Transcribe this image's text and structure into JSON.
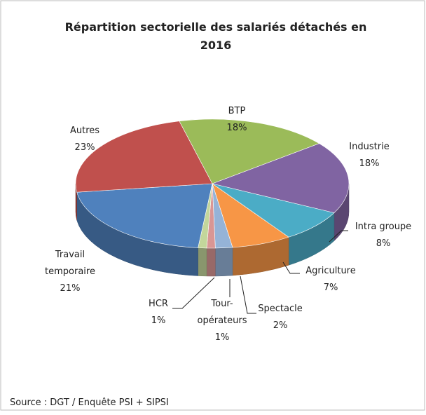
{
  "chart_data": {
    "type": "pie3d",
    "title": "Répartition sectorielle des salariés détachés en 2016",
    "categories": [
      "BTP",
      "Industrie",
      "Intra groupe",
      "Agriculture",
      "Spectacle",
      "Tour-opérateurs",
      "HCR",
      "Travail temporaire",
      "Autres"
    ],
    "values": [
      18,
      18,
      8,
      7,
      2,
      1,
      1,
      21,
      23
    ],
    "value_labels": [
      "18%",
      "18%",
      "8%",
      "7%",
      "2%",
      "1%",
      "1%",
      "21%",
      "23%"
    ],
    "colors": [
      "#9bbb59",
      "#8064a2",
      "#4bacc6",
      "#f79646",
      "#95b3d7",
      "#d99694",
      "#c3d69b",
      "#4f81bd",
      "#c0504d"
    ],
    "source": "Source : DGT / Enquête  PSI + SIPSI"
  }
}
